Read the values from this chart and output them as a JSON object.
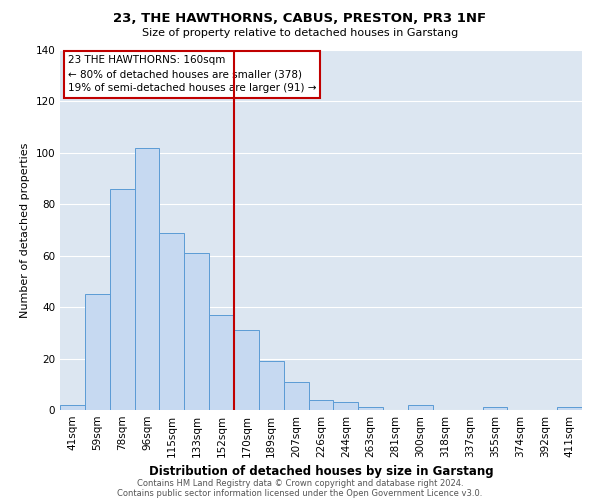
{
  "title": "23, THE HAWTHORNS, CABUS, PRESTON, PR3 1NF",
  "subtitle": "Size of property relative to detached houses in Garstang",
  "xlabel": "Distribution of detached houses by size in Garstang",
  "ylabel": "Number of detached properties",
  "bar_labels": [
    "41sqm",
    "59sqm",
    "78sqm",
    "96sqm",
    "115sqm",
    "133sqm",
    "152sqm",
    "170sqm",
    "189sqm",
    "207sqm",
    "226sqm",
    "244sqm",
    "263sqm",
    "281sqm",
    "300sqm",
    "318sqm",
    "337sqm",
    "355sqm",
    "374sqm",
    "392sqm",
    "411sqm"
  ],
  "bar_values": [
    2,
    45,
    86,
    102,
    69,
    61,
    37,
    31,
    19,
    11,
    4,
    3,
    1,
    0,
    2,
    0,
    0,
    1,
    0,
    0,
    1
  ],
  "bar_color": "#c6d9f1",
  "bar_edge_color": "#5b9bd5",
  "highlight_line_color": "#c00000",
  "ylim": [
    0,
    140
  ],
  "yticks": [
    0,
    20,
    40,
    60,
    80,
    100,
    120,
    140
  ],
  "annotation_title": "23 THE HAWTHORNS: 160sqm",
  "annotation_line1": "← 80% of detached houses are smaller (378)",
  "annotation_line2": "19% of semi-detached houses are larger (91) →",
  "annotation_box_color": "#ffffff",
  "annotation_box_edge": "#c00000",
  "footer_line1": "Contains HM Land Registry data © Crown copyright and database right 2024.",
  "footer_line2": "Contains public sector information licensed under the Open Government Licence v3.0.",
  "background_color": "#ffffff",
  "grid_color": "#ffffff",
  "axes_bg_color": "#dce6f1",
  "title_fontsize": 9.5,
  "subtitle_fontsize": 8.0,
  "ylabel_fontsize": 8.0,
  "xlabel_fontsize": 8.5,
  "tick_fontsize": 7.5,
  "annotation_fontsize": 7.5,
  "footer_fontsize": 6.0
}
